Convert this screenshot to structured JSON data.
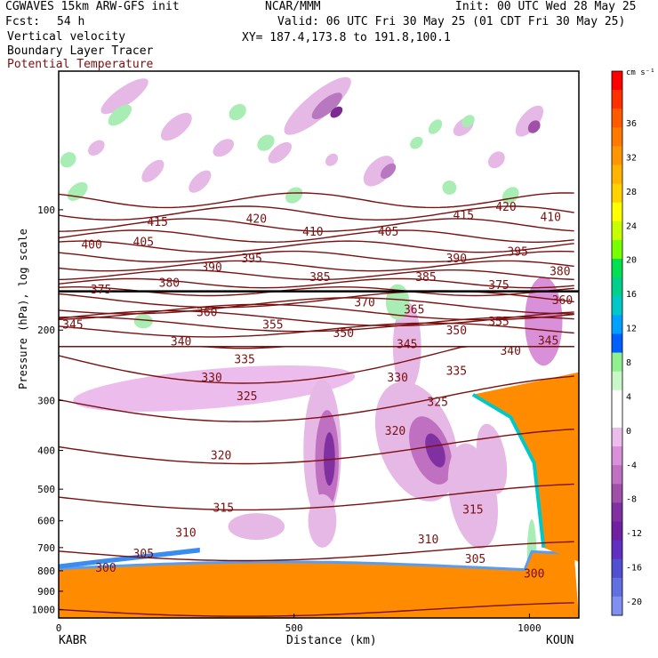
{
  "header": {
    "model": "CGWAVES 15km ARW-GFS init",
    "org": "NCAR/MMM",
    "init": "Init: 00 UTC Wed 28 May 25",
    "fcst_label": "Fcst:",
    "fcst_value": "54 h",
    "valid": "Valid: 06 UTC Fri 30 May 25 (01 CDT Fri 30 May 25)",
    "fields": [
      "Vertical velocity",
      "Boundary Layer Tracer",
      "Potential Temperature"
    ],
    "xy": "XY= 187.4,173.8 to 191.8,100.1"
  },
  "colors": {
    "theta": "#7a1010",
    "theta_label": "#7a1010",
    "tracer_fill": "#ff8c00",
    "downward": "#b050b0",
    "upward": "#7ee08e"
  },
  "chart_data": {
    "type": "heatmap",
    "title": "Vertical velocity",
    "xlabel": "Distance (km)",
    "ylabel": "Pressure (hPa), log scale",
    "xlim": [
      0,
      1105
    ],
    "ylim": [
      1050,
      45
    ],
    "y_scale": "log",
    "x_ticks": [
      "0",
      "500",
      "1000"
    ],
    "x_tick_values": [
      0,
      500,
      1000
    ],
    "y_ticks": [
      "100",
      "200",
      "300",
      "400",
      "500",
      "600",
      "700",
      "800",
      "900",
      "1000"
    ],
    "y_tick_values": [
      100,
      200,
      300,
      400,
      500,
      600,
      700,
      800,
      900,
      1000
    ],
    "endpoints": {
      "left": "KABR",
      "right": "KOUN"
    },
    "colorbar": {
      "unit": "cm s⁻¹",
      "labels": [
        "36",
        "32",
        "28",
        "24",
        "20",
        "16",
        "12",
        "8",
        "4",
        "0",
        "-4",
        "-8",
        "-12",
        "-16",
        "-20"
      ],
      "colors": [
        "#ff0000",
        "#ff3000",
        "#ff5a00",
        "#ff7800",
        "#ff9600",
        "#ffb400",
        "#ffd200",
        "#ffff00",
        "#c8ff00",
        "#78ff00",
        "#00e050",
        "#00d08c",
        "#00c8c8",
        "#00a0ff",
        "#0060ff",
        "#90f090",
        "#c8f8c8",
        "#ffffff",
        "#ffffff",
        "#ecbcec",
        "#d890d8",
        "#c070c0",
        "#a050a8",
        "#8030a0",
        "#7020a0",
        "#6030c0",
        "#5050d0",
        "#6070e0",
        "#8090f0"
      ]
    },
    "theta_labels": [
      {
        "v": "415",
        "x": 210,
        "p": 107
      },
      {
        "v": "420",
        "x": 420,
        "p": 105
      },
      {
        "v": "410",
        "x": 540,
        "p": 113
      },
      {
        "v": "405",
        "x": 700,
        "p": 113
      },
      {
        "v": "415",
        "x": 860,
        "p": 103
      },
      {
        "v": "420",
        "x": 950,
        "p": 98
      },
      {
        "v": "410",
        "x": 1045,
        "p": 104
      },
      {
        "v": "400",
        "x": 70,
        "p": 122
      },
      {
        "v": "405",
        "x": 180,
        "p": 120
      },
      {
        "v": "395",
        "x": 410,
        "p": 132
      },
      {
        "v": "390",
        "x": 325,
        "p": 139
      },
      {
        "v": "385",
        "x": 555,
        "p": 147
      },
      {
        "v": "385",
        "x": 780,
        "p": 147
      },
      {
        "v": "390",
        "x": 845,
        "p": 132
      },
      {
        "v": "395",
        "x": 975,
        "p": 127
      },
      {
        "v": "380",
        "x": 1065,
        "p": 142
      },
      {
        "v": "375",
        "x": 90,
        "p": 158
      },
      {
        "v": "380",
        "x": 235,
        "p": 152
      },
      {
        "v": "375",
        "x": 935,
        "p": 154
      },
      {
        "v": "360",
        "x": 1070,
        "p": 168
      },
      {
        "v": "370",
        "x": 650,
        "p": 170
      },
      {
        "v": "365",
        "x": 755,
        "p": 177
      },
      {
        "v": "360",
        "x": 315,
        "p": 180
      },
      {
        "v": "345",
        "x": 30,
        "p": 193
      },
      {
        "v": "355",
        "x": 455,
        "p": 193
      },
      {
        "v": "350",
        "x": 605,
        "p": 203
      },
      {
        "v": "350",
        "x": 845,
        "p": 200
      },
      {
        "v": "355",
        "x": 935,
        "p": 190
      },
      {
        "v": "345",
        "x": 1040,
        "p": 212
      },
      {
        "v": "340",
        "x": 260,
        "p": 213
      },
      {
        "v": "345",
        "x": 740,
        "p": 216
      },
      {
        "v": "340",
        "x": 960,
        "p": 225
      },
      {
        "v": "335",
        "x": 395,
        "p": 236
      },
      {
        "v": "335",
        "x": 845,
        "p": 252
      },
      {
        "v": "330",
        "x": 325,
        "p": 262
      },
      {
        "v": "330",
        "x": 720,
        "p": 262
      },
      {
        "v": "325",
        "x": 400,
        "p": 292
      },
      {
        "v": "325",
        "x": 805,
        "p": 302
      },
      {
        "v": "320",
        "x": 715,
        "p": 356
      },
      {
        "v": "320",
        "x": 345,
        "p": 410
      },
      {
        "v": "315",
        "x": 350,
        "p": 555
      },
      {
        "v": "315",
        "x": 880,
        "p": 560
      },
      {
        "v": "310",
        "x": 270,
        "p": 640
      },
      {
        "v": "310",
        "x": 785,
        "p": 665
      },
      {
        "v": "305",
        "x": 180,
        "p": 723
      },
      {
        "v": "305",
        "x": 885,
        "p": 745
      },
      {
        "v": "300",
        "x": 100,
        "p": 785
      },
      {
        "v": "300",
        "x": 1010,
        "p": 810
      }
    ]
  }
}
